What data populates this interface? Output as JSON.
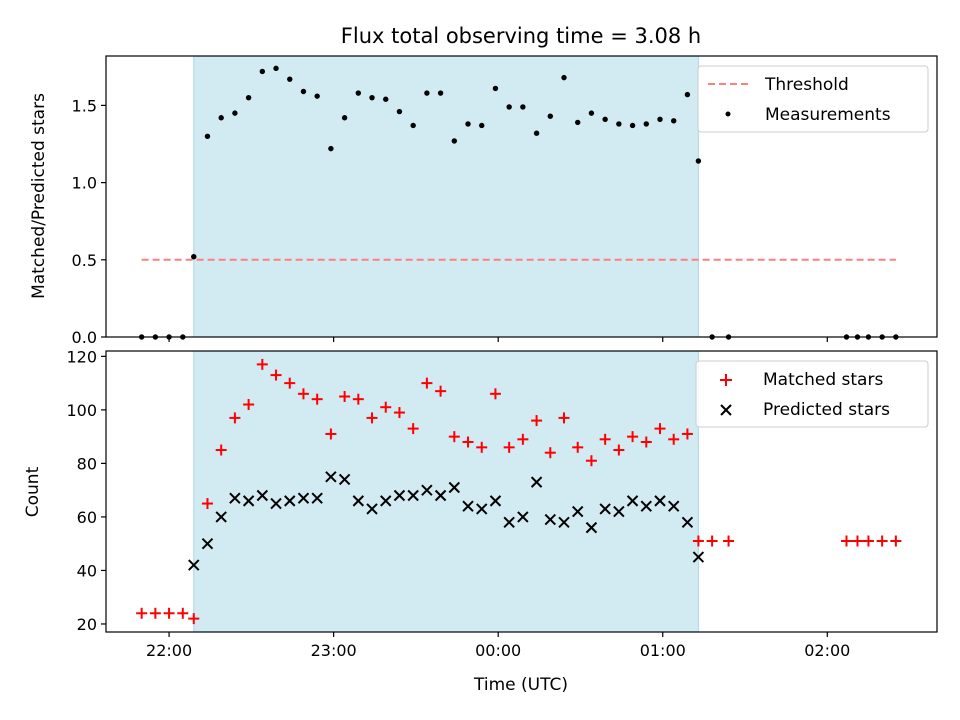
{
  "chart_data": [
    {
      "type": "scatter",
      "title": "Flux total observing time = 3.08 h",
      "xlabel": "",
      "ylabel": "Matched/Predicted stars",
      "ylim": [
        0,
        1.82
      ],
      "yticks": [
        0.0,
        0.5,
        1.0,
        1.5
      ],
      "ytick_labels": [
        "0.0",
        "0.5",
        "1.0",
        "1.5"
      ],
      "xlim": [
        "21:37",
        "02:40"
      ],
      "grid": false,
      "legend_placement": "top-right",
      "threshold": {
        "name": "Threshold",
        "value": 0.5,
        "x_start": "21:50",
        "x_end": "02:25",
        "color": "#ff7f7f",
        "style": "dashed"
      },
      "shaded_interval": {
        "start": "22:09",
        "end": "01:13",
        "color": "#add8e6"
      },
      "series": [
        {
          "name": "Measurements",
          "color": "#000000",
          "marker": "dot",
          "x": [
            "21:50",
            "21:55",
            "22:00",
            "22:05",
            "22:09",
            "22:14",
            "22:19",
            "22:24",
            "22:29",
            "22:34",
            "22:39",
            "22:44",
            "22:49",
            "22:54",
            "22:59",
            "23:04",
            "23:09",
            "23:14",
            "23:19",
            "23:24",
            "23:29",
            "23:34",
            "23:39",
            "23:44",
            "23:49",
            "23:54",
            "23:59",
            "00:04",
            "00:09",
            "00:14",
            "00:19",
            "00:24",
            "00:29",
            "00:34",
            "00:39",
            "00:44",
            "00:49",
            "00:54",
            "00:59",
            "01:04",
            "01:09",
            "01:13",
            "01:18",
            "01:24",
            "02:07",
            "02:11",
            "02:15",
            "02:20",
            "02:25"
          ],
          "y": [
            0,
            0,
            0,
            0,
            0.52,
            1.3,
            1.42,
            1.45,
            1.55,
            1.72,
            1.74,
            1.67,
            1.59,
            1.56,
            1.22,
            1.42,
            1.58,
            1.55,
            1.54,
            1.46,
            1.37,
            1.58,
            1.58,
            1.27,
            1.38,
            1.37,
            1.61,
            1.49,
            1.49,
            1.32,
            1.43,
            1.68,
            1.39,
            1.45,
            1.41,
            1.38,
            1.37,
            1.38,
            1.41,
            1.4,
            1.57,
            1.14,
            0,
            0,
            0,
            0,
            0,
            0,
            0
          ]
        }
      ]
    },
    {
      "type": "scatter",
      "title": "",
      "xlabel": "Time (UTC)",
      "ylabel": "Count",
      "ylim": [
        17,
        122
      ],
      "yticks": [
        20,
        40,
        60,
        80,
        100,
        120
      ],
      "ytick_labels": [
        "20",
        "40",
        "60",
        "80",
        "100",
        "120"
      ],
      "xticks": [
        "22:00",
        "23:00",
        "00:00",
        "01:00",
        "02:00"
      ],
      "xlim": [
        "21:37",
        "02:40"
      ],
      "grid": false,
      "legend_placement": "top-right",
      "shaded_interval": {
        "start": "22:09",
        "end": "01:13",
        "color": "#add8e6"
      },
      "series": [
        {
          "name": "Matched stars",
          "color": "#ff0000",
          "marker": "plus",
          "x": [
            "21:50",
            "21:55",
            "22:00",
            "22:05",
            "22:09",
            "22:14",
            "22:19",
            "22:24",
            "22:29",
            "22:34",
            "22:39",
            "22:44",
            "22:49",
            "22:54",
            "22:59",
            "23:04",
            "23:09",
            "23:14",
            "23:19",
            "23:24",
            "23:29",
            "23:34",
            "23:39",
            "23:44",
            "23:49",
            "23:54",
            "23:59",
            "00:04",
            "00:09",
            "00:14",
            "00:19",
            "00:24",
            "00:29",
            "00:34",
            "00:39",
            "00:44",
            "00:49",
            "00:54",
            "00:59",
            "01:04",
            "01:09",
            "01:13",
            "01:18",
            "01:24",
            "02:07",
            "02:11",
            "02:15",
            "02:20",
            "02:25"
          ],
          "y": [
            24,
            24,
            24,
            24,
            22,
            65,
            85,
            97,
            102,
            117,
            113,
            110,
            106,
            104,
            91,
            105,
            104,
            97,
            101,
            99,
            93,
            110,
            107,
            90,
            88,
            86,
            106,
            86,
            89,
            96,
            84,
            97,
            86,
            81,
            89,
            85,
            90,
            88,
            93,
            89,
            91,
            51,
            51,
            51,
            51,
            51,
            51,
            51,
            51
          ]
        },
        {
          "name": "Predicted stars",
          "color": "#000000",
          "marker": "x",
          "x": [
            "22:09",
            "22:14",
            "22:19",
            "22:24",
            "22:29",
            "22:34",
            "22:39",
            "22:44",
            "22:49",
            "22:54",
            "22:59",
            "23:04",
            "23:09",
            "23:14",
            "23:19",
            "23:24",
            "23:29",
            "23:34",
            "23:39",
            "23:44",
            "23:49",
            "23:54",
            "23:59",
            "00:04",
            "00:09",
            "00:14",
            "00:19",
            "00:24",
            "00:29",
            "00:34",
            "00:39",
            "00:44",
            "00:49",
            "00:54",
            "00:59",
            "01:04",
            "01:09",
            "01:13"
          ],
          "y": [
            42,
            50,
            60,
            67,
            66,
            68,
            65,
            66,
            67,
            67,
            75,
            74,
            66,
            63,
            66,
            68,
            68,
            70,
            68,
            71,
            64,
            63,
            66,
            58,
            60,
            73,
            59,
            58,
            62,
            56,
            63,
            62,
            66,
            64,
            66,
            64,
            58,
            45
          ]
        }
      ]
    }
  ]
}
